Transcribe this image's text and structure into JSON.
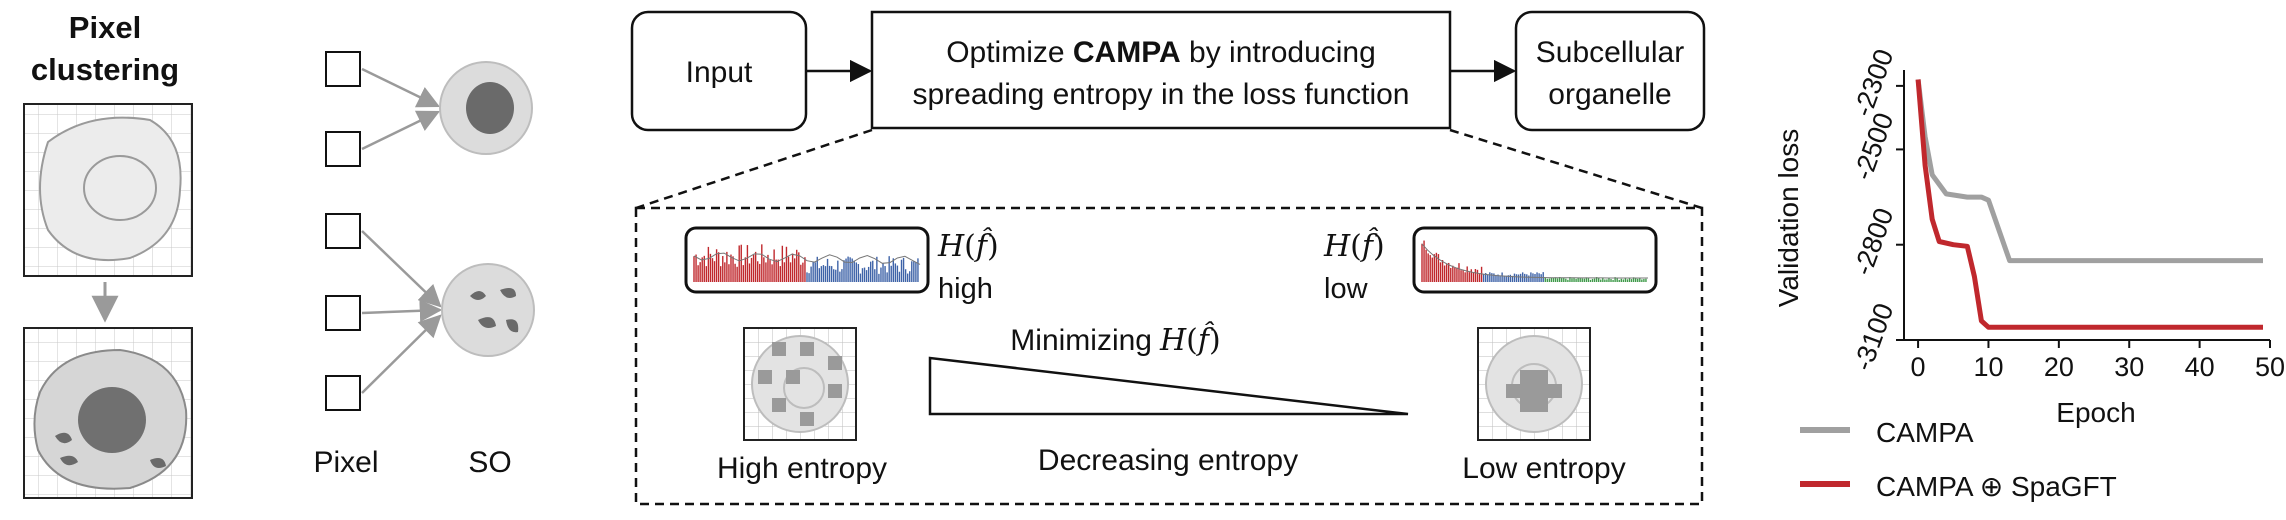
{
  "panel_left": {
    "title_line1": "Pixel",
    "title_line2": "clustering"
  },
  "panel_mapping": {
    "pixel_label": "Pixel",
    "so_label": "SO"
  },
  "flow": {
    "input_label": "Input",
    "optimize_prefix": "Optimize ",
    "optimize_bold": "CAMPA",
    "optimize_suffix": " by introducing",
    "optimize_line2": "spreading entropy in the loss function",
    "output_line1": "Subcellular",
    "output_line2": "organelle"
  },
  "entropy_panel": {
    "h_symbol": "H",
    "f_symbol": "f̂",
    "high_label": "high",
    "low_label": "low",
    "minimizing_label": "Minimizing",
    "high_entropy_label": "High entropy",
    "decreasing_label": "Decreasing entropy",
    "low_entropy_label": "Low entropy"
  },
  "colors": {
    "red": "#c0282d",
    "blue": "#3e63a8",
    "green": "#3f9a4a",
    "gray_line": "#a0a0a0",
    "cell_fill": "#d9d9d9",
    "nucleus": "#707070"
  },
  "chart_data": {
    "type": "line",
    "xlabel": "Epoch",
    "ylabel": "Validation loss",
    "xlim": [
      -2,
      50
    ],
    "ylim": [
      -3100,
      -2250
    ],
    "xticks": [
      "0",
      "10",
      "20",
      "30",
      "40",
      "50"
    ],
    "yticks": [
      "-2300",
      "-2500",
      "-2800",
      "-3100"
    ],
    "legend_position": "bottom",
    "series": [
      {
        "name": "CAMPA",
        "color": "#a0a0a0",
        "x": [
          0,
          1,
          2,
          4,
          7,
          9,
          10,
          13,
          20,
          30,
          40,
          49
        ],
        "y": [
          -2280,
          -2460,
          -2580,
          -2640,
          -2650,
          -2650,
          -2660,
          -2850,
          -2850,
          -2850,
          -2850,
          -2850
        ]
      },
      {
        "name": "CAMPA ⊕ SpaGFT",
        "color": "#c0282d",
        "x": [
          0,
          1,
          2,
          3,
          5,
          7,
          8,
          9,
          10,
          15,
          20,
          30,
          40,
          49
        ],
        "y": [
          -2280,
          -2550,
          -2720,
          -2790,
          -2800,
          -2805,
          -2900,
          -3040,
          -3060,
          -3060,
          -3060,
          -3060,
          -3060,
          -3060
        ]
      }
    ]
  }
}
